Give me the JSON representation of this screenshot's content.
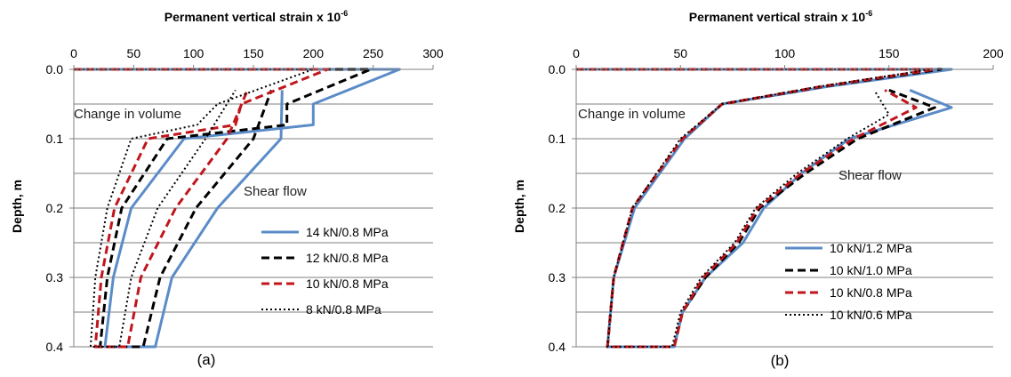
{
  "chart_data": [
    {
      "panel": "(a)",
      "type": "line",
      "xlabel_main": "Permanent vertical strain x 10",
      "xlabel_sup": "-6",
      "ylabel": "Depth, m",
      "xlim": [
        0,
        300
      ],
      "ylim": [
        0,
        0.4
      ],
      "y_inverted": true,
      "x_axis_position": "top",
      "xticks": [
        "0",
        "50",
        "100",
        "150",
        "200",
        "250",
        "300"
      ],
      "yticks": [
        "0.0",
        "0.1",
        "0.2",
        "0.3",
        "0.4"
      ],
      "grid": "horizontal lines every 0.05 m",
      "legend_placement": "bottom-right",
      "annotations": [
        {
          "text": "Change in volume",
          "x": 0,
          "y": 0.07
        },
        {
          "text": "Shear flow",
          "x": 118,
          "y": 0.18
        }
      ],
      "series": [
        {
          "name": "14 kN/0.8 MPa",
          "color": "#5b8cc8",
          "style": "solid",
          "points": [
            [
              0,
              0
            ],
            [
              272,
              0
            ],
            [
              200,
              0.05
            ],
            [
              200,
              0.08
            ],
            [
              92,
              0.1
            ],
            [
              48,
              0.2
            ],
            [
              33,
              0.3
            ],
            [
              26,
              0.4
            ],
            [
              68,
              0.4
            ],
            [
              82,
              0.3
            ],
            [
              120,
              0.2
            ],
            [
              173,
              0.1
            ],
            [
              174,
              0.03
            ]
          ]
        },
        {
          "name": "12 kN/0.8 MPa",
          "color": "#000000",
          "style": "dashed",
          "points": [
            [
              0,
              0
            ],
            [
              248,
              0
            ],
            [
              178,
              0.05
            ],
            [
              178,
              0.08
            ],
            [
              78,
              0.1
            ],
            [
              40,
              0.2
            ],
            [
              28,
              0.3
            ],
            [
              22,
              0.4
            ],
            [
              58,
              0.4
            ],
            [
              72,
              0.3
            ],
            [
              102,
              0.2
            ],
            [
              150,
              0.1
            ],
            [
              165,
              0.03
            ]
          ]
        },
        {
          "name": "10 kN/0.8 MPa",
          "color": "#c0161c",
          "style": "dashed",
          "points": [
            [
              0,
              0
            ],
            [
              212,
              0
            ],
            [
              140,
              0.05
            ],
            [
              135,
              0.08
            ],
            [
              62,
              0.1
            ],
            [
              34,
              0.2
            ],
            [
              23,
              0.3
            ],
            [
              18,
              0.4
            ],
            [
              45,
              0.4
            ],
            [
              56,
              0.3
            ],
            [
              85,
              0.2
            ],
            [
              128,
              0.1
            ],
            [
              145,
              0.03
            ]
          ]
        },
        {
          "name": "8 kN/0.8 MPa",
          "color": "#000000",
          "style": "dotted",
          "points": [
            [
              0,
              0
            ],
            [
              200,
              0
            ],
            [
              120,
              0.05
            ],
            [
              103,
              0.08
            ],
            [
              48,
              0.1
            ],
            [
              28,
              0.2
            ],
            [
              18,
              0.3
            ],
            [
              14,
              0.4
            ],
            [
              38,
              0.4
            ],
            [
              48,
              0.3
            ],
            [
              70,
              0.2
            ],
            [
              110,
              0.1
            ],
            [
              135,
              0.03
            ]
          ]
        }
      ]
    },
    {
      "panel": "(b)",
      "type": "line",
      "xlabel_main": "Permanent vertical strain x 10",
      "xlabel_sup": "-6",
      "ylabel": "Depth, m",
      "xlim": [
        0,
        200
      ],
      "ylim": [
        0,
        0.4
      ],
      "y_inverted": true,
      "x_axis_position": "top",
      "xticks": [
        "0",
        "50",
        "100",
        "150",
        "200"
      ],
      "yticks": [
        "0.0",
        "0.1",
        "0.2",
        "0.3",
        "0.4"
      ],
      "grid": "horizontal lines every 0.05 m",
      "legend_placement": "bottom-right",
      "annotations": [
        {
          "text": "Change in volume",
          "x": 1,
          "y": 0.07
        },
        {
          "text": "Shear flow",
          "x": 128,
          "y": 0.16
        }
      ],
      "series": [
        {
          "name": "10 kN/1.2 MPa",
          "color": "#5b8cc8",
          "style": "solid",
          "points": [
            [
              0,
              0
            ],
            [
              180,
              0
            ],
            [
              120,
              0.025
            ],
            [
              70,
              0.05
            ],
            [
              52,
              0.1
            ],
            [
              28,
              0.2
            ],
            [
              18,
              0.3
            ],
            [
              15,
              0.4
            ],
            [
              47,
              0.4
            ],
            [
              51,
              0.35
            ],
            [
              62,
              0.3
            ],
            [
              80,
              0.25
            ],
            [
              90,
              0.2
            ],
            [
              108,
              0.15
            ],
            [
              131,
              0.1
            ],
            [
              180,
              0.055
            ],
            [
              160,
              0.03
            ]
          ]
        },
        {
          "name": "10 kN/1.0 MPa",
          "color": "#000000",
          "style": "dashed",
          "points": [
            [
              0,
              0
            ],
            [
              175,
              0
            ],
            [
              118,
              0.025
            ],
            [
              70,
              0.05
            ],
            [
              51,
              0.1
            ],
            [
              27,
              0.2
            ],
            [
              18,
              0.3
            ],
            [
              15,
              0.4
            ],
            [
              47,
              0.4
            ],
            [
              51,
              0.35
            ],
            [
              62,
              0.3
            ],
            [
              78,
              0.25
            ],
            [
              88,
              0.2
            ],
            [
              110,
              0.15
            ],
            [
              135,
              0.1
            ],
            [
              172,
              0.055
            ],
            [
              150,
              0.03
            ]
          ]
        },
        {
          "name": "10 kN/0.8 MPa",
          "color": "#c0161c",
          "style": "dashed",
          "points": [
            [
              0,
              0
            ],
            [
              172,
              0
            ],
            [
              117,
              0.025
            ],
            [
              70,
              0.05
            ],
            [
              51,
              0.1
            ],
            [
              27,
              0.2
            ],
            [
              18,
              0.3
            ],
            [
              15,
              0.4
            ],
            [
              47,
              0.4
            ],
            [
              51,
              0.35
            ],
            [
              61,
              0.3
            ],
            [
              77,
              0.25
            ],
            [
              87,
              0.2
            ],
            [
              108,
              0.15
            ],
            [
              133,
              0.1
            ],
            [
              163,
              0.055
            ],
            [
              148,
              0.03
            ]
          ]
        },
        {
          "name": "10 kN/0.6 MPa",
          "color": "#000000",
          "style": "dotted",
          "points": [
            [
              0,
              0
            ],
            [
              170,
              0
            ],
            [
              116,
              0.025
            ],
            [
              70,
              0.05
            ],
            [
              50,
              0.1
            ],
            [
              27,
              0.2
            ],
            [
              18,
              0.3
            ],
            [
              15,
              0.4
            ],
            [
              46,
              0.4
            ],
            [
              50,
              0.35
            ],
            [
              60,
              0.3
            ],
            [
              76,
              0.25
            ],
            [
              86,
              0.2
            ],
            [
              106,
              0.15
            ],
            [
              130,
              0.1
            ],
            [
              150,
              0.065
            ],
            [
              143,
              0.03
            ]
          ]
        }
      ]
    }
  ],
  "captions": [
    "(a)",
    "(b)"
  ]
}
